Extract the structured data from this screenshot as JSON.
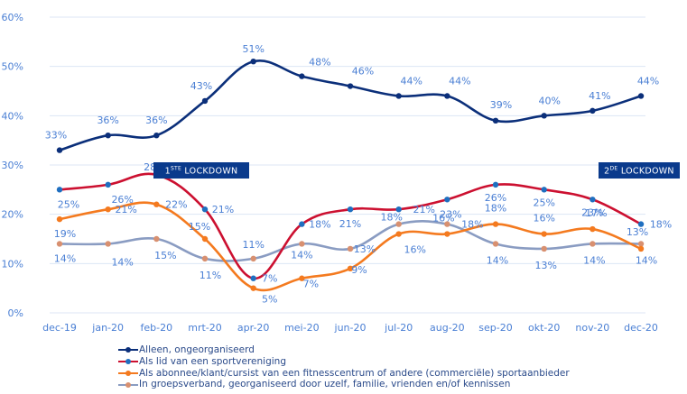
{
  "chart_data": {
    "type": "line",
    "title": "",
    "xlabel": "",
    "ylabel": "",
    "categories": [
      "dec-19",
      "jan-20",
      "feb-20",
      "mrt-20",
      "apr-20",
      "mei-20",
      "jun-20",
      "jul-20",
      "aug-20",
      "sep-20",
      "okt-20",
      "nov-20",
      "dec-20"
    ],
    "ylim": [
      0,
      60
    ],
    "yticks": [
      0,
      10,
      20,
      30,
      40,
      50,
      60
    ],
    "ytick_labels": [
      "0%",
      "10%",
      "20%",
      "30%",
      "40%",
      "50%",
      "60%"
    ],
    "grid": true,
    "legend_position": "bottom",
    "series": [
      {
        "name": "Alleen, ongeorganiseerd",
        "color": "#0b2f7a",
        "marker_color": "#0b2f7a",
        "values": [
          33,
          36,
          36,
          43,
          51,
          48,
          46,
          44,
          44,
          39,
          40,
          41,
          44
        ],
        "labels": [
          "33%",
          "36%",
          "36%",
          "43%",
          "51%",
          "48%",
          "46%",
          "44%",
          "44%",
          "39%",
          "40%",
          "41%",
          "44%"
        ]
      },
      {
        "name": "Als lid van een sportvereniging",
        "color": "#cc1030",
        "marker_color": "#1f6fc0",
        "values": [
          25,
          26,
          28,
          21,
          7,
          18,
          21,
          21,
          23,
          26,
          25,
          23,
          18
        ],
        "labels": [
          "25%",
          "26%",
          "28%",
          "21%",
          "7%",
          "18%",
          "21%",
          "21%",
          "23%",
          "26%",
          "25%",
          "23%",
          "18%"
        ]
      },
      {
        "name": "Als abonnee/klant/cursist van een fitnesscentrum of andere (commerciële) sportaanbieder",
        "color": "#f47a1f",
        "marker_color": "#f47a1f",
        "values": [
          19,
          21,
          22,
          15,
          5,
          7,
          9,
          16,
          16,
          18,
          16,
          17,
          13
        ],
        "labels": [
          "19%",
          "21%",
          "22%",
          "15%",
          "5%",
          "7%",
          "9%",
          "16%",
          "16%",
          "18%",
          "16%",
          "17%",
          "13%"
        ]
      },
      {
        "name": "In groepsverband, georganiseerd door uzelf, familie, vrienden en/of kennissen",
        "color": "#8a9cc2",
        "marker_color": "#d89070",
        "values": [
          14,
          14,
          15,
          11,
          11,
          14,
          13,
          18,
          18,
          14,
          13,
          14,
          14
        ],
        "labels": [
          "14%",
          "14%",
          "15%",
          "11%",
          "11%",
          "14%",
          "13%",
          "18%",
          "18%",
          "14%",
          "13%",
          "14%",
          "14%"
        ]
      }
    ],
    "annotations": [
      {
        "name": "first-lockdown",
        "prefix": "1",
        "sup": "STE",
        "text": "LOCKDOWN",
        "at_category": "feb-20"
      },
      {
        "name": "second-lockdown",
        "prefix": "2",
        "sup": "DE",
        "text": "LOCKDOWN",
        "at_category": "dec-20"
      }
    ]
  }
}
